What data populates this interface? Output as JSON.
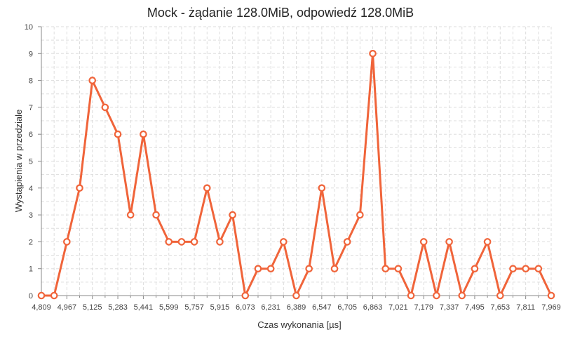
{
  "chart_data": {
    "type": "line",
    "title": "Mock - żądanie 128.0MiB, odpowiedź 128.0MiB",
    "xlabel": "Czas wykonania [µs]",
    "ylabel": "Wystąpienia w przedziale",
    "xlim": [
      4809,
      7969
    ],
    "ylim": [
      0,
      10
    ],
    "x_tick_labels": [
      "4,809",
      "4,967",
      "5,125",
      "5,283",
      "5,441",
      "5,599",
      "5,757",
      "5,915",
      "6,073",
      "6,231",
      "6,389",
      "6,547",
      "6,705",
      "6,863",
      "7,021",
      "7,179",
      "7,337",
      "7,495",
      "7,653",
      "7,811",
      "7,969"
    ],
    "y_ticks": [
      0,
      1,
      2,
      3,
      4,
      5,
      6,
      7,
      8,
      9,
      10
    ],
    "grid": true,
    "series": [
      {
        "color": "#f0643a",
        "values": [
          0,
          0,
          2,
          4,
          8,
          7,
          6,
          3,
          6,
          3,
          2,
          2,
          2,
          4,
          2,
          3,
          0,
          1,
          1,
          2,
          0,
          1,
          4,
          1,
          2,
          3,
          9,
          1,
          1,
          0,
          2,
          0,
          2,
          0,
          1,
          2,
          0,
          1,
          1,
          1,
          0
        ]
      }
    ]
  }
}
